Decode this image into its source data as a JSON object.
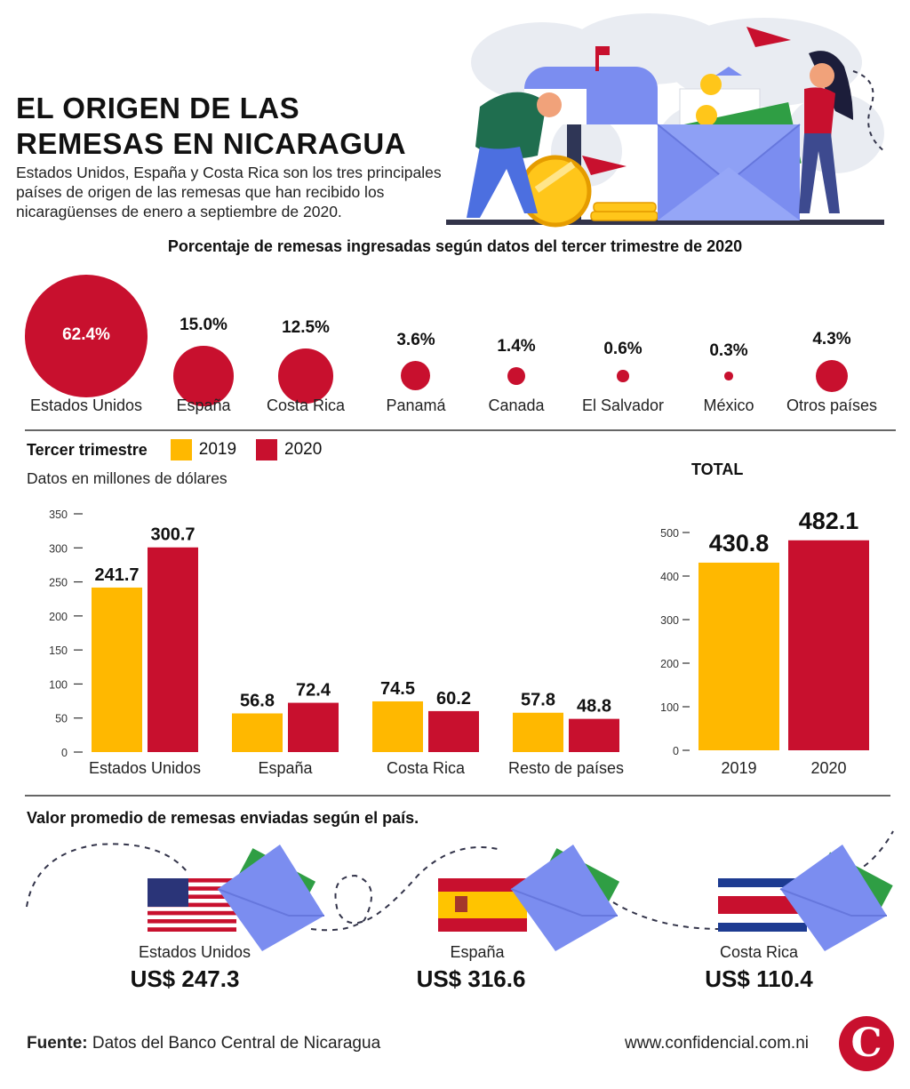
{
  "header": {
    "title_line1": "EL ORIGEN DE LAS",
    "title_line2": "REMESAS EN NICARAGUA",
    "subtitle": "Estados Unidos, España y Costa Rica son los tres principales países de origen de las remesas que han recibido los nicaragüenses de enero a septiembre de 2020."
  },
  "colors": {
    "y2019": "#ffb800",
    "y2020": "#c8102e",
    "bubble": "#c8102e"
  },
  "chart_data": [
    {
      "type": "bubble",
      "title": "Porcentaje de remesas ingresadas según datos del tercer trimestre de 2020",
      "categories": [
        "Estados Unidos",
        "España",
        "Costa Rica",
        "Panamá",
        "Canada",
        "El Salvador",
        "México",
        "Otros países"
      ],
      "values": [
        62.4,
        15.0,
        12.5,
        3.6,
        1.4,
        0.6,
        0.3,
        4.3
      ],
      "labels": [
        "62.4%",
        "15.0%",
        "12.5%",
        "3.6%",
        "1.4%",
        "0.6%",
        "0.3%",
        "4.3%"
      ]
    },
    {
      "type": "bar",
      "title": "Tercer trimestre",
      "subtitle": "Datos en millones de dólares",
      "categories": [
        "Estados Unidos",
        "España",
        "Costa Rica",
        "Resto de países"
      ],
      "series": [
        {
          "name": "2019",
          "values": [
            241.7,
            56.8,
            74.5,
            57.8
          ],
          "labels": [
            "241.7",
            "56.8",
            "74.5",
            "57.8"
          ]
        },
        {
          "name": "2020",
          "values": [
            300.7,
            72.4,
            60.2,
            48.8
          ],
          "labels": [
            "300.7",
            "72.4",
            "60.2",
            "48.8"
          ]
        }
      ],
      "ylim": [
        0,
        350
      ],
      "yticks": [
        "0",
        "50",
        "100",
        "150",
        "200",
        "250",
        "300",
        "350"
      ],
      "legend": "top-left"
    },
    {
      "type": "bar",
      "title": "TOTAL",
      "categories": [
        "2019",
        "2020"
      ],
      "values": [
        430.8,
        482.1
      ],
      "labels": [
        "430.8",
        "482.1"
      ],
      "ylim": [
        0,
        550
      ],
      "yticks": [
        "0",
        "100",
        "200",
        "300",
        "400",
        "500"
      ]
    }
  ],
  "average": {
    "heading": "Valor promedio de remesas enviadas según el país.",
    "items": [
      {
        "country": "Estados Unidos",
        "value": "US$ 247.3"
      },
      {
        "country": "España",
        "value": "US$ 316.6"
      },
      {
        "country": "Costa Rica",
        "value": "US$ 110.4"
      }
    ]
  },
  "footer": {
    "source_label": "Fuente:",
    "source_text": "Datos del Banco Central de Nicaragua",
    "website": "www.confidencial.com.ni",
    "logo_letter": "C"
  }
}
